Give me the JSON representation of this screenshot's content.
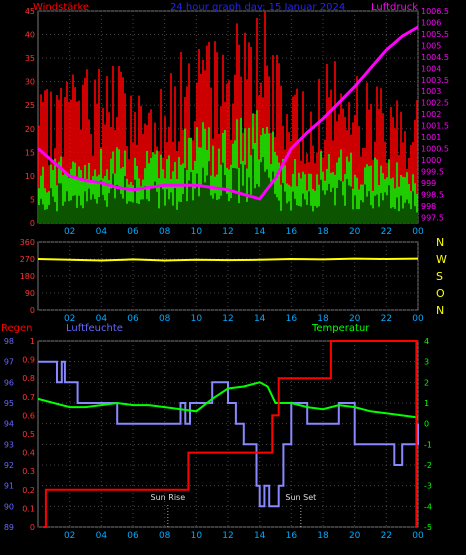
{
  "chart_data": [
    {
      "type": "area",
      "title": "24 hour graph day: 15 Januar 2024",
      "left_label": "Windstärke",
      "right_label": "Luftdruck",
      "x_ticks": [
        "02",
        "04",
        "06",
        "08",
        "10",
        "12",
        "14",
        "16",
        "18",
        "20",
        "22",
        "00"
      ],
      "y_left": {
        "range": [
          0,
          45
        ],
        "ticks": [
          "0",
          "5",
          "10",
          "15",
          "20",
          "25",
          "30",
          "35",
          "40",
          "45"
        ]
      },
      "y_right": {
        "range": [
          997.25,
          1006.5
        ],
        "ticks": [
          "997.5",
          "998",
          "998.5",
          "999",
          "999.5",
          "1000",
          "1000.5",
          "1001",
          "1001.5",
          "1002",
          "1002.5",
          "1003",
          "1003.5",
          "1004",
          "1004.5",
          "1005",
          "1005.5",
          "1006",
          "1006.5"
        ]
      },
      "series": [
        {
          "name": "gust",
          "color": "#ff0000",
          "hours": [
            0,
            1,
            2,
            3,
            4,
            5,
            6,
            7,
            8,
            9,
            10,
            11,
            12,
            13,
            14,
            15,
            16,
            17,
            18,
            19,
            20,
            21,
            22,
            23,
            24
          ],
          "values": [
            20,
            22,
            26,
            25,
            27,
            26,
            22,
            23,
            25,
            27,
            30,
            29,
            31,
            34,
            38,
            27,
            22,
            21,
            25,
            27,
            24,
            23,
            22,
            21,
            20
          ]
        },
        {
          "name": "wind",
          "color": "#00ff00",
          "hours": [
            0,
            1,
            2,
            3,
            4,
            5,
            6,
            7,
            8,
            9,
            10,
            11,
            12,
            13,
            14,
            15,
            16,
            17,
            18,
            19,
            20,
            21,
            22,
            23,
            24
          ],
          "values": [
            9,
            11,
            13,
            12,
            13,
            14,
            11,
            12,
            13,
            15,
            17,
            16,
            17,
            18,
            20,
            14,
            11,
            10,
            12,
            13,
            12,
            11,
            11,
            10,
            9
          ]
        },
        {
          "name": "pressure",
          "color": "#ff00ff",
          "axis": "right",
          "hours": [
            0,
            1,
            2,
            3,
            4,
            5,
            6,
            7,
            8,
            9,
            10,
            11,
            12,
            13,
            14,
            15,
            16,
            17,
            18,
            19,
            20,
            21,
            22,
            23,
            24
          ],
          "values": [
            1000.5,
            999.9,
            999.3,
            999.1,
            999.0,
            998.8,
            998.7,
            998.8,
            998.9,
            998.9,
            998.9,
            998.8,
            998.7,
            998.5,
            998.3,
            999.2,
            1000.5,
            1001.2,
            1001.8,
            1002.5,
            1003.2,
            1004.0,
            1004.8,
            1005.4,
            1005.8
          ]
        }
      ]
    },
    {
      "type": "line",
      "x_ticks": [
        "02",
        "04",
        "06",
        "08",
        "10",
        "12",
        "14",
        "16",
        "18",
        "20",
        "22",
        "00"
      ],
      "y_left": {
        "range": [
          0,
          360
        ],
        "ticks": [
          "0",
          "90",
          "180",
          "270",
          "360"
        ]
      },
      "y_right_labels": [
        "N",
        "W",
        "S",
        "O",
        "N"
      ],
      "series": [
        {
          "name": "wind direction",
          "color": "#ffff00",
          "hours": [
            0,
            2,
            4,
            6,
            8,
            10,
            12,
            14,
            16,
            18,
            20,
            22,
            24
          ],
          "values": [
            270,
            266,
            262,
            268,
            262,
            266,
            264,
            266,
            270,
            268,
            272,
            270,
            272
          ]
        }
      ]
    },
    {
      "type": "line",
      "left_label": "Regen",
      "mid_label": "Luftfeuchte",
      "right_label": "Temperatur",
      "x_ticks": [
        "02",
        "04",
        "06",
        "08",
        "10",
        "12",
        "14",
        "16",
        "18",
        "20",
        "22",
        "00"
      ],
      "y_humidity": {
        "range": [
          89,
          98
        ],
        "ticks": [
          "89",
          "90",
          "91",
          "92",
          "93",
          "94",
          "95",
          "96",
          "97",
          "98"
        ]
      },
      "y_rain": {
        "range": [
          0,
          1
        ],
        "ticks": [
          "0",
          "0.1",
          "0.2",
          "0.3",
          "0.4",
          "0.5",
          "0.6",
          "0.7",
          "0.8",
          "0.9",
          "1"
        ]
      },
      "y_temp": {
        "range": [
          -5,
          4
        ],
        "ticks": [
          "-5",
          "-4",
          "-3",
          "-2",
          "-1",
          "0",
          "1",
          "2",
          "3",
          "4"
        ]
      },
      "annotations": [
        {
          "text": "Sun Rise",
          "hour": 8.2
        },
        {
          "text": "Sun Set",
          "hour": 16.6
        }
      ],
      "series": [
        {
          "name": "rain",
          "color": "#ff0000",
          "hours": [
            0.3,
            0.5,
            0.5,
            9.5,
            9.5,
            14.8,
            14.8,
            15.2,
            15.2,
            18.5,
            18.5,
            23.9,
            23.9
          ],
          "values": [
            0,
            0,
            0.2,
            0.2,
            0.4,
            0.4,
            0.6,
            0.6,
            0.8,
            0.8,
            1.0,
            1.0,
            0
          ]
        },
        {
          "name": "humidity",
          "color": "#8888ff",
          "hours": [
            0,
            1,
            1.2,
            1.5,
            1.7,
            2,
            2.5,
            4,
            5,
            5.2,
            7,
            8,
            9,
            9.3,
            9.6,
            11,
            12,
            12.5,
            13,
            13.5,
            13.8,
            14,
            14.3,
            14.6,
            15,
            15.2,
            15.5,
            16,
            17,
            18,
            19,
            20,
            21,
            22,
            22.5,
            23,
            24
          ],
          "values": [
            97,
            97,
            96,
            97,
            96,
            96,
            95,
            95,
            94,
            94,
            94,
            94,
            95,
            94,
            95,
            96,
            95,
            94,
            93,
            93,
            91,
            90,
            91,
            90,
            90,
            91,
            93,
            95,
            94,
            94,
            95,
            93,
            93,
            93,
            92,
            93,
            94
          ]
        },
        {
          "name": "temperature",
          "color": "#00ff00",
          "axis": "right",
          "hours": [
            0,
            1,
            2,
            3,
            4,
            5,
            6,
            7,
            8,
            9,
            10,
            11,
            12,
            13,
            14,
            14.5,
            15,
            16,
            17,
            18,
            19,
            20,
            21,
            22,
            23,
            24
          ],
          "values": [
            1.2,
            1.0,
            0.8,
            0.8,
            0.9,
            1.0,
            0.9,
            0.9,
            0.8,
            0.7,
            0.6,
            1.2,
            1.7,
            1.8,
            2.0,
            1.8,
            1.0,
            1.0,
            0.8,
            0.7,
            0.9,
            0.8,
            0.6,
            0.5,
            0.4,
            0.3
          ]
        }
      ]
    }
  ]
}
